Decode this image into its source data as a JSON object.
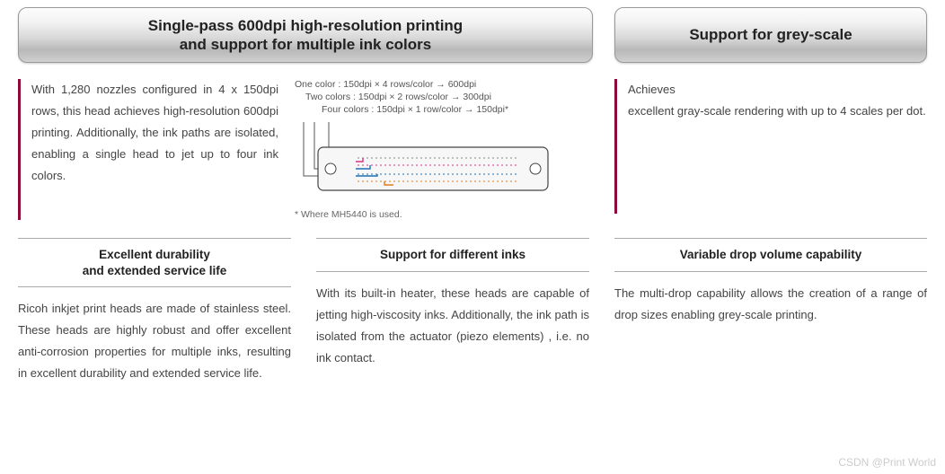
{
  "headers": {
    "left": "Single-pass 600dpi high-resolution printing\nand support for multiple ink colors",
    "right": "Support for grey-scale"
  },
  "intro_left": "With 1,280 nozzles configured in 4 x 150dpi rows, this head achieves high-resolution 600dpi printing. Additionally, the ink paths are isolated, enabling a single head to jet up to four ink colors.",
  "intro_right": "Achieves\nexcellent gray-scale rendering with up to 4 scales per dot.",
  "diagram": {
    "line1": "One color : 150dpi × 4 rows/color → 600dpi",
    "line2": "Two colors : 150dpi × 2 rows/color → 300dpi",
    "line3": "Four colors : 150dpi × 1 row/color → 150dpi*",
    "footnote": "* Where MH5440 is used.",
    "colors": {
      "outline": "#444444",
      "row1": "#888888",
      "row2": "#d63384",
      "row3": "#1f6fb2",
      "row4": "#e07b1a",
      "lead": "#555555"
    }
  },
  "sections": {
    "durability": {
      "title": "Excellent durability\nand extended service life",
      "body": "Ricoh inkjet print heads are made of stainless steel. These heads are highly robust and offer excellent anti-corrosion properties for multiple inks, resulting in excellent durability and extended service life."
    },
    "inks": {
      "title": "Support for different inks",
      "body": "With its built-in heater, these heads are capable of jetting high-viscosity inks. Additionally, the ink path is isolated from the actuator (piezo elements) , i.e. no ink contact."
    },
    "drop": {
      "title": "Variable drop volume capability",
      "body": "The multi-drop capability allows the creation of a range of drop sizes enabling grey-scale printing."
    }
  },
  "watermark": "CSDN @Print World"
}
